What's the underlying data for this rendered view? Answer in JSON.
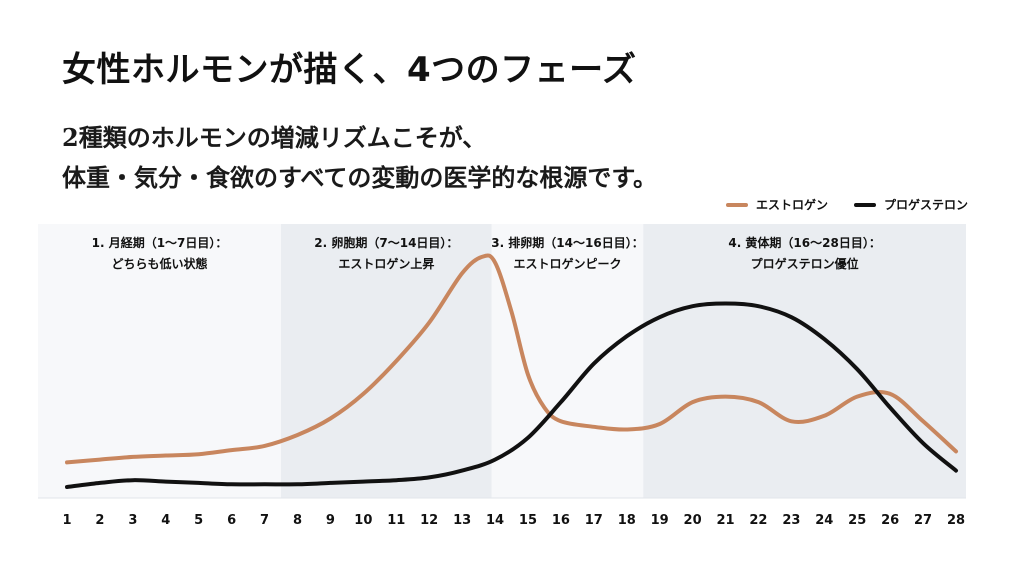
{
  "header": {
    "title": "女性ホルモンが描く、4つのフェーズ",
    "subtitle_line1": "2種類のホルモンの増減リズムこそが、",
    "subtitle_line2": "体重・気分・食欲のすべての変動の医学的な根源です。"
  },
  "chart_data": {
    "type": "line",
    "title": "",
    "xlabel": "",
    "ylabel": "",
    "xlim": [
      1,
      28
    ],
    "ylim": [
      0,
      100
    ],
    "grid": false,
    "legend_position": "top-right",
    "x": [
      1,
      2,
      3,
      4,
      5,
      6,
      7,
      8,
      9,
      10,
      11,
      12,
      13,
      14,
      15,
      16,
      17,
      18,
      19,
      20,
      21,
      22,
      23,
      24,
      25,
      26,
      27,
      28
    ],
    "phases": [
      {
        "label_line1": "1. 月経期（1〜7日目）：",
        "label_line2": "どちらも低い状態",
        "start": 1,
        "end": 7.5,
        "color": "#f7f8fa"
      },
      {
        "label_line1": "2. 卵胞期（7〜14日目）：",
        "label_line2": "エストロゲン上昇",
        "start": 7.5,
        "end": 13.9,
        "color": "#eaedf1"
      },
      {
        "label_line1": "3. 排卵期（14〜16日目）：",
        "label_line2": "エストロゲンピーク",
        "start": 13.9,
        "end": 18.5,
        "color": "#f7f8fa"
      },
      {
        "label_line1": "4. 黄体期（16〜28日目）：",
        "label_line2": "プロゲステロン優位",
        "start": 18.5,
        "end": 28.3,
        "color": "#eaedf1"
      }
    ],
    "series": [
      {
        "name": "エストロゲン",
        "color": "#c8865e",
        "points": [
          [
            1,
            13
          ],
          [
            2,
            14
          ],
          [
            3,
            15
          ],
          [
            4,
            15.5
          ],
          [
            5,
            16
          ],
          [
            6,
            17.5
          ],
          [
            7,
            19
          ],
          [
            8,
            23
          ],
          [
            9,
            29
          ],
          [
            10,
            38
          ],
          [
            11,
            50
          ],
          [
            12,
            64
          ],
          [
            13,
            82
          ],
          [
            13.6,
            88
          ],
          [
            14,
            86
          ],
          [
            14.5,
            68
          ],
          [
            15,
            45
          ],
          [
            15.5,
            33
          ],
          [
            16,
            28
          ],
          [
            17,
            26
          ],
          [
            18,
            25
          ],
          [
            19,
            27
          ],
          [
            20,
            35
          ],
          [
            21,
            37
          ],
          [
            22,
            35
          ],
          [
            23,
            28
          ],
          [
            24,
            30
          ],
          [
            25,
            37
          ],
          [
            26,
            38
          ],
          [
            27,
            28
          ],
          [
            28,
            17
          ]
        ]
      },
      {
        "name": "プロゲステロン",
        "color": "#111111",
        "points": [
          [
            1,
            4
          ],
          [
            2,
            5.5
          ],
          [
            3,
            6.5
          ],
          [
            4,
            6
          ],
          [
            5,
            5.5
          ],
          [
            6,
            5
          ],
          [
            7,
            5
          ],
          [
            8,
            5
          ],
          [
            9,
            5.5
          ],
          [
            10,
            6
          ],
          [
            11,
            6.5
          ],
          [
            12,
            7.5
          ],
          [
            13,
            10
          ],
          [
            14,
            14
          ],
          [
            15,
            22
          ],
          [
            16,
            35
          ],
          [
            17,
            49
          ],
          [
            18,
            59
          ],
          [
            19,
            66
          ],
          [
            20,
            70
          ],
          [
            21,
            71
          ],
          [
            22,
            70
          ],
          [
            23,
            66
          ],
          [
            24,
            58
          ],
          [
            25,
            47
          ],
          [
            26,
            33
          ],
          [
            27,
            20
          ],
          [
            28,
            10
          ]
        ]
      }
    ]
  }
}
